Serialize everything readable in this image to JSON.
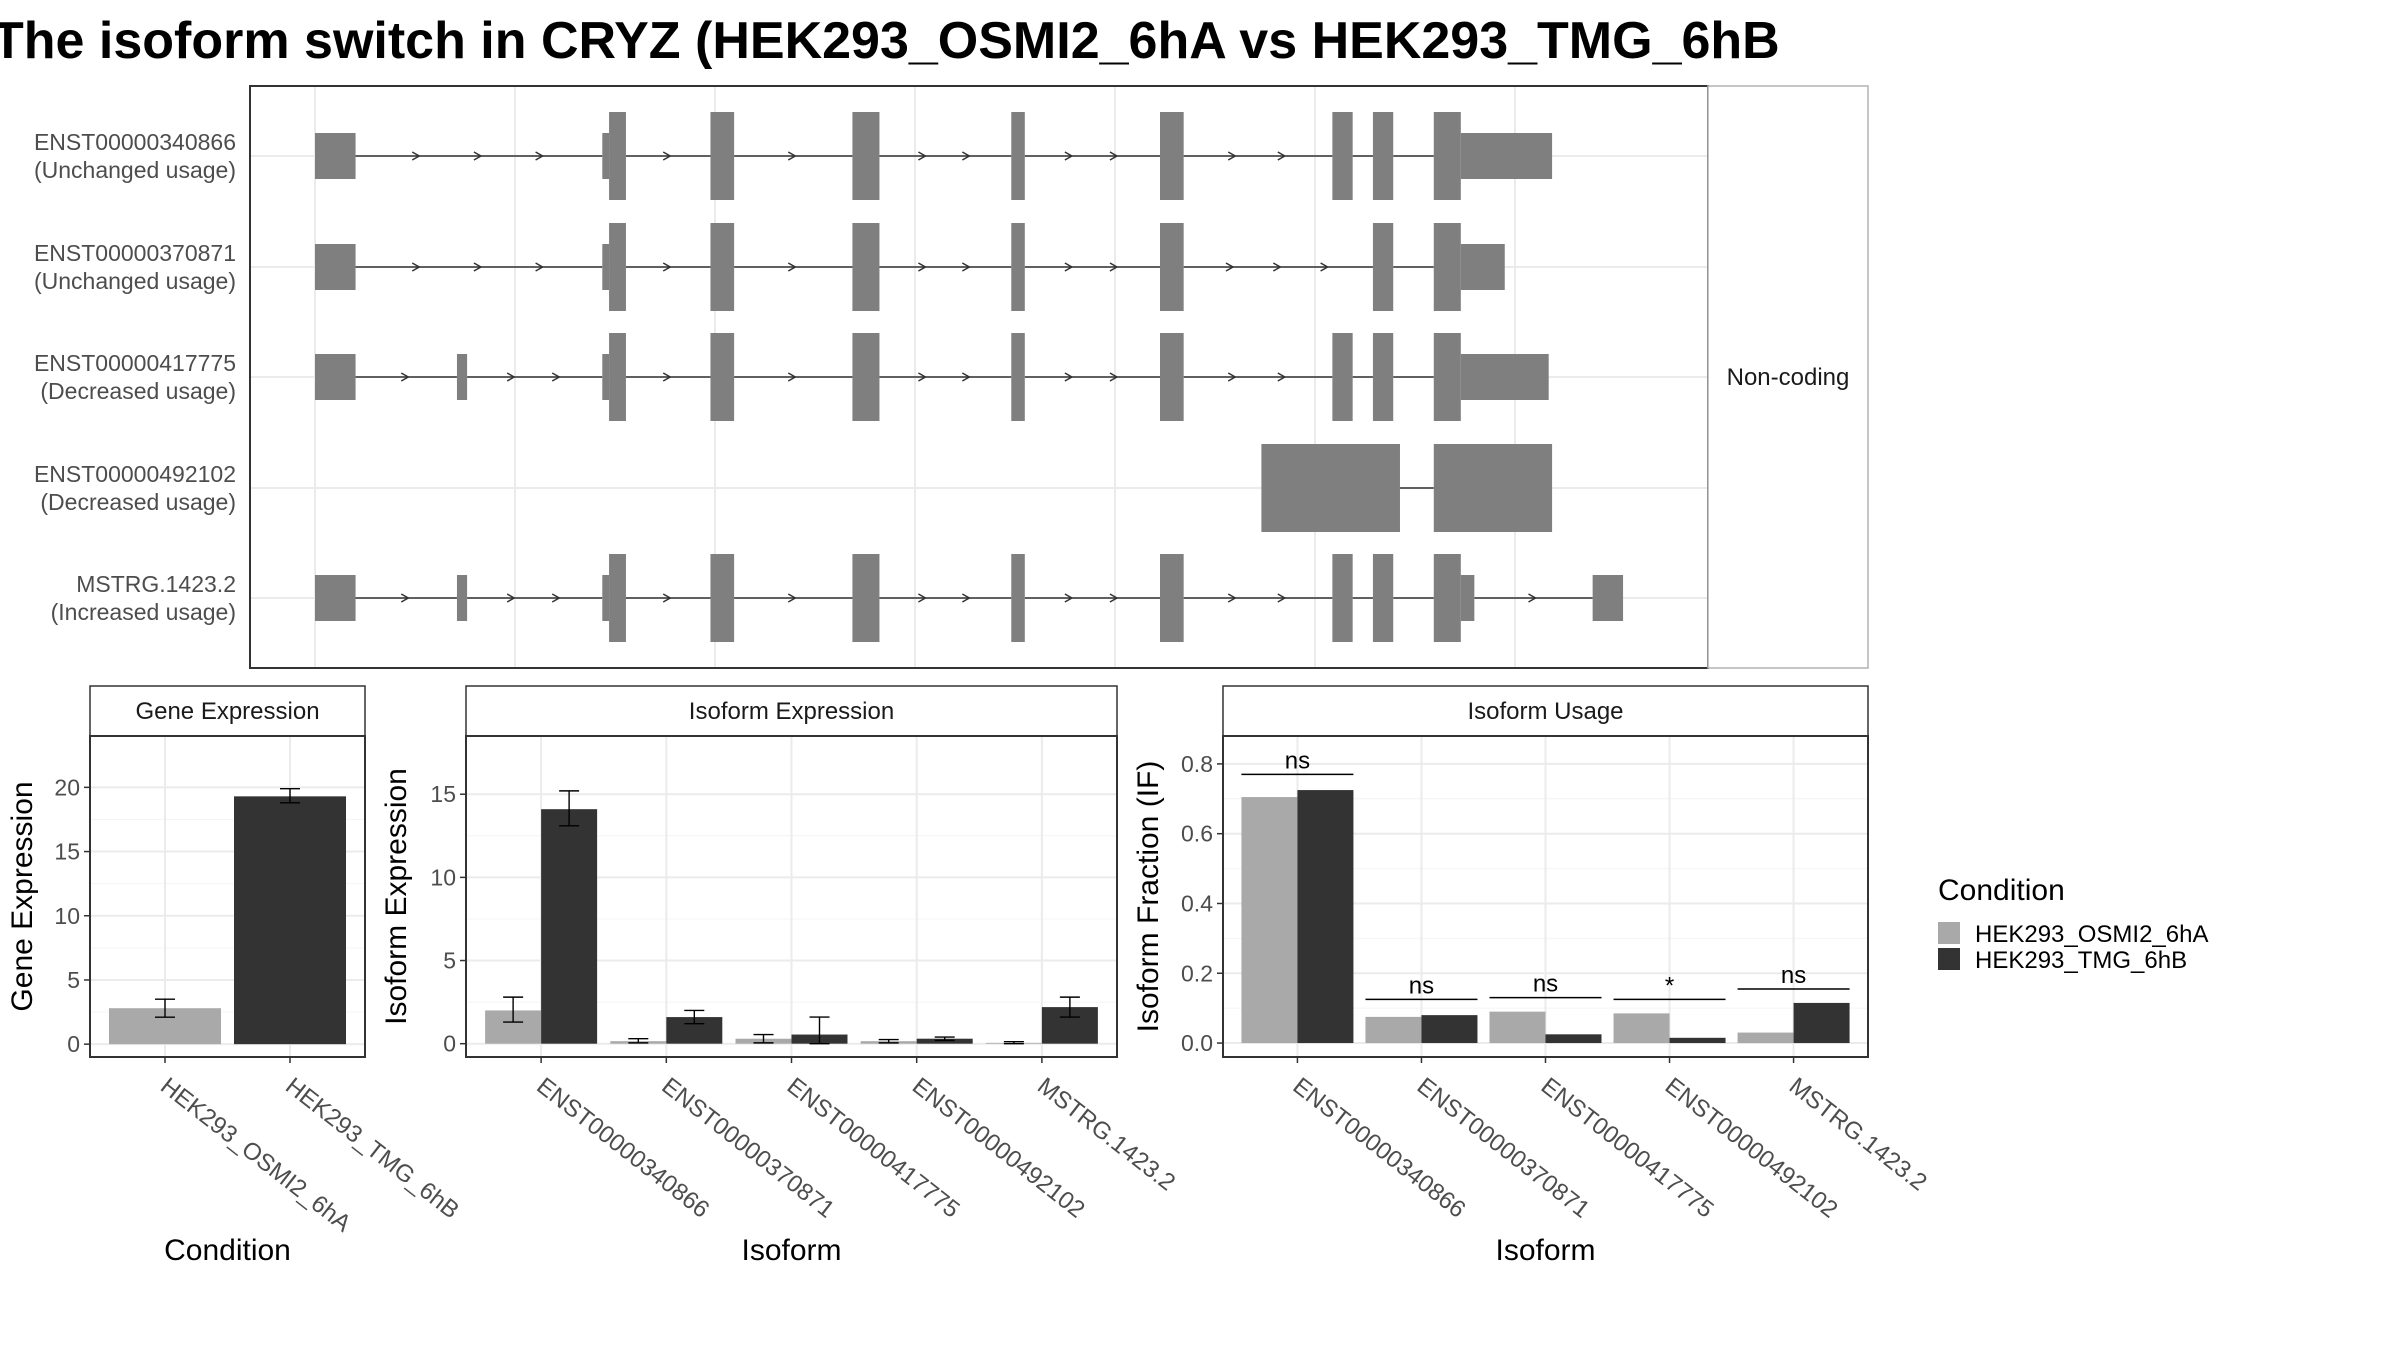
{
  "title": "The isoform switch in CRYZ (HEK293_OSMI2_6hA vs HEK293_TMG_6hB",
  "structure": {
    "side_label": "Non-coding",
    "exon_color": "#7f7f7f",
    "isoforms": [
      {
        "id": "ENST00000340866",
        "usage": "(Unchanged usage)",
        "exons": [
          [
            0,
            12,
            "t"
          ],
          [
            85,
            87,
            "t"
          ],
          [
            87,
            92,
            "f"
          ],
          [
            117,
            124,
            "f"
          ],
          [
            159,
            167,
            "f"
          ],
          [
            206,
            210,
            "f"
          ],
          [
            250,
            257,
            "f"
          ],
          [
            301,
            307,
            "f"
          ],
          [
            313,
            319,
            "f"
          ],
          [
            331,
            339,
            "f"
          ],
          [
            339,
            366,
            "t"
          ]
        ]
      },
      {
        "id": "ENST00000370871",
        "usage": "(Unchanged usage)",
        "exons": [
          [
            0,
            12,
            "t"
          ],
          [
            85,
            87,
            "t"
          ],
          [
            87,
            92,
            "f"
          ],
          [
            117,
            124,
            "f"
          ],
          [
            159,
            167,
            "f"
          ],
          [
            206,
            210,
            "f"
          ],
          [
            250,
            257,
            "f"
          ],
          [
            313,
            319,
            "f"
          ],
          [
            331,
            339,
            "f"
          ],
          [
            339,
            352,
            "t"
          ]
        ]
      },
      {
        "id": "ENST00000417775",
        "usage": "(Decreased usage)",
        "exons": [
          [
            0,
            12,
            "t"
          ],
          [
            42,
            45,
            "t"
          ],
          [
            85,
            87,
            "t"
          ],
          [
            87,
            92,
            "f"
          ],
          [
            117,
            124,
            "f"
          ],
          [
            159,
            167,
            "f"
          ],
          [
            206,
            210,
            "f"
          ],
          [
            250,
            257,
            "f"
          ],
          [
            301,
            307,
            "f"
          ],
          [
            313,
            319,
            "f"
          ],
          [
            331,
            339,
            "f"
          ],
          [
            339,
            365,
            "t"
          ]
        ]
      },
      {
        "id": "ENST00000492102",
        "usage": "(Decreased usage)",
        "exons": [
          [
            280,
            321,
            "f"
          ],
          [
            331,
            366,
            "f"
          ]
        ]
      },
      {
        "id": "MSTRG.1423.2",
        "usage": "(Increased usage)",
        "exons": [
          [
            0,
            12,
            "t"
          ],
          [
            42,
            45,
            "t"
          ],
          [
            85,
            87,
            "t"
          ],
          [
            87,
            92,
            "f"
          ],
          [
            117,
            124,
            "f"
          ],
          [
            159,
            167,
            "f"
          ],
          [
            206,
            210,
            "f"
          ],
          [
            250,
            257,
            "f"
          ],
          [
            301,
            307,
            "f"
          ],
          [
            313,
            319,
            "f"
          ],
          [
            331,
            339,
            "f"
          ],
          [
            339,
            343,
            "t"
          ],
          [
            378,
            387,
            "t"
          ]
        ]
      }
    ]
  },
  "colors": {
    "cond_a": "#a9a9a9",
    "cond_b": "#333333",
    "grid": "#ebebeb",
    "panel_border": "#333333",
    "strip_bg": "#ffffff"
  },
  "chart_data": [
    {
      "type": "bar",
      "title": "Gene Expression",
      "xlabel": "Condition",
      "ylabel": "Gene Expression",
      "categories": [
        "HEK293_OSMI2_6hA",
        "HEK293_TMG_6hB"
      ],
      "values": [
        2.8,
        19.3
      ],
      "errors": [
        [
          2.1,
          3.5
        ],
        [
          18.8,
          19.9
        ]
      ],
      "ylim": [
        -1,
        24
      ],
      "yticks": [
        0,
        5,
        10,
        15,
        20
      ],
      "grid": true
    },
    {
      "type": "bar",
      "title": "Isoform Expression",
      "xlabel": "Isoform",
      "ylabel": "Isoform Expression",
      "categories": [
        "ENST00000340866",
        "ENST00000370871",
        "ENST00000417775",
        "ENST00000492102",
        "MSTRG.1423.2"
      ],
      "series": [
        {
          "name": "HEK293_OSMI2_6hA",
          "values": [
            2.0,
            0.15,
            0.3,
            0.15,
            0.05
          ],
          "errors": [
            [
              1.3,
              2.8
            ],
            [
              0.05,
              0.3
            ],
            [
              0.05,
              0.55
            ],
            [
              0.05,
              0.25
            ],
            [
              0.0,
              0.12
            ]
          ]
        },
        {
          "name": "HEK293_TMG_6hB",
          "values": [
            14.1,
            1.6,
            0.55,
            0.3,
            2.2
          ],
          "errors": [
            [
              13.1,
              15.2
            ],
            [
              1.2,
              2.0
            ],
            [
              0.0,
              1.6
            ],
            [
              0.2,
              0.4
            ],
            [
              1.6,
              2.8
            ]
          ]
        }
      ],
      "ylim": [
        -0.8,
        18.5
      ],
      "yticks": [
        0,
        5,
        10,
        15
      ],
      "grid": true
    },
    {
      "type": "bar",
      "title": "Isoform Usage",
      "xlabel": "Isoform",
      "ylabel": "Isoform Fraction (IF)",
      "categories": [
        "ENST00000340866",
        "ENST00000370871",
        "ENST00000417775",
        "ENST00000492102",
        "MSTRG.1423.2"
      ],
      "series": [
        {
          "name": "HEK293_OSMI2_6hA",
          "values": [
            0.705,
            0.075,
            0.09,
            0.085,
            0.03
          ]
        },
        {
          "name": "HEK293_TMG_6hB",
          "values": [
            0.725,
            0.08,
            0.025,
            0.015,
            0.115
          ]
        }
      ],
      "significance": [
        "ns",
        "ns",
        "ns",
        "*",
        "ns"
      ],
      "significance_level": [
        0.77,
        0.125,
        0.13,
        0.125,
        0.155
      ],
      "ylim": [
        -0.04,
        0.88
      ],
      "yticks": [
        "0.0",
        "0.2",
        "0.4",
        "0.6",
        "0.8"
      ],
      "grid": true
    }
  ],
  "legend": {
    "title": "Condition",
    "items": [
      {
        "label": "HEK293_OSMI2_6hA",
        "color": "#a9a9a9"
      },
      {
        "label": "HEK293_TMG_6hB",
        "color": "#333333"
      }
    ]
  }
}
